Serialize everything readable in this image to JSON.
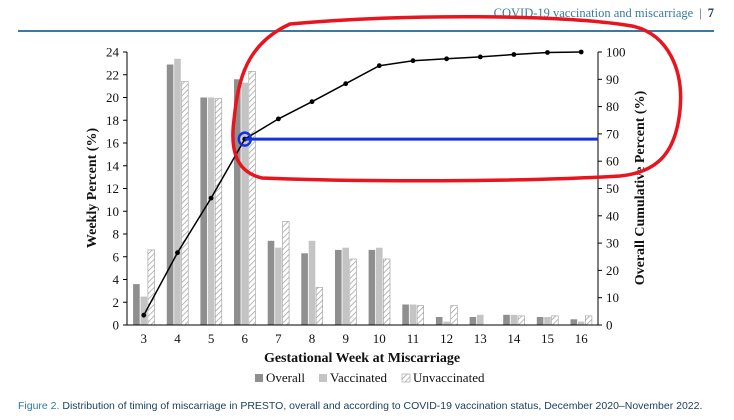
{
  "header": {
    "running_title": "COVID-19 vaccination and miscarriage",
    "separator": "|",
    "page_number": "7"
  },
  "caption": {
    "label": "Figure 2.",
    "text": " Distribution of timing of miscarriage in PRESTO, overall and according to COVID-19 vaccination status, December 2020–November 2022."
  },
  "colors": {
    "overall": "#8f8f8f",
    "vaccinated": "#c4c4c4",
    "unvaccinated_hatch": "#9a9a9a",
    "cumulative_line": "#000000",
    "annotation_red": "#e8141e",
    "annotation_blue": "#1530e0"
  },
  "chart_data": {
    "type": "bar",
    "title": "",
    "xlabel": "Gestational Week at Miscarriage",
    "ylabel": "Weekly Percent (%)",
    "y2label": "Overall Cumulative Percent (%)",
    "categories": [
      "3",
      "4",
      "5",
      "6",
      "7",
      "8",
      "9",
      "10",
      "11",
      "12",
      "13",
      "14",
      "15",
      "16"
    ],
    "ylim": [
      0,
      24
    ],
    "yticks": [
      "0",
      "2",
      "4",
      "6",
      "8",
      "10",
      "12",
      "14",
      "16",
      "18",
      "20",
      "22",
      "24"
    ],
    "y2lim": [
      0,
      100
    ],
    "y2ticks": [
      "0",
      "10",
      "20",
      "30",
      "40",
      "50",
      "60",
      "70",
      "80",
      "90",
      "100"
    ],
    "grid": false,
    "legend_position": "bottom-center",
    "series": [
      {
        "name": "Overall",
        "kind": "bar",
        "values": [
          3.6,
          22.9,
          20.0,
          21.6,
          7.4,
          6.3,
          6.6,
          6.6,
          1.8,
          0.7,
          0.7,
          0.9,
          0.7,
          0.5
        ]
      },
      {
        "name": "Vaccinated",
        "kind": "bar",
        "values": [
          2.5,
          23.4,
          20.0,
          21.3,
          6.8,
          7.4,
          6.8,
          6.8,
          1.8,
          0.3,
          0.9,
          0.9,
          0.7,
          0.3
        ]
      },
      {
        "name": "Unvaccinated",
        "kind": "bar-hatched",
        "values": [
          6.6,
          21.4,
          19.9,
          22.3,
          9.1,
          3.3,
          5.8,
          5.8,
          1.7,
          1.7,
          0.0,
          0.8,
          0.8,
          0.8
        ]
      },
      {
        "name": "",
        "kind": "line",
        "axis": "right",
        "values": [
          3.6,
          26.5,
          46.5,
          68.1,
          75.5,
          81.8,
          88.4,
          95.0,
          96.8,
          97.5,
          98.2,
          99.1,
          99.8,
          100.0
        ]
      }
    ],
    "annotations": {
      "red_outline": "hand-drawn ellipse around cumulative curve from week 6 to 16",
      "blue_circle_at": {
        "x": "6",
        "y2": 68.1
      },
      "blue_line_y2": 68.1
    }
  }
}
